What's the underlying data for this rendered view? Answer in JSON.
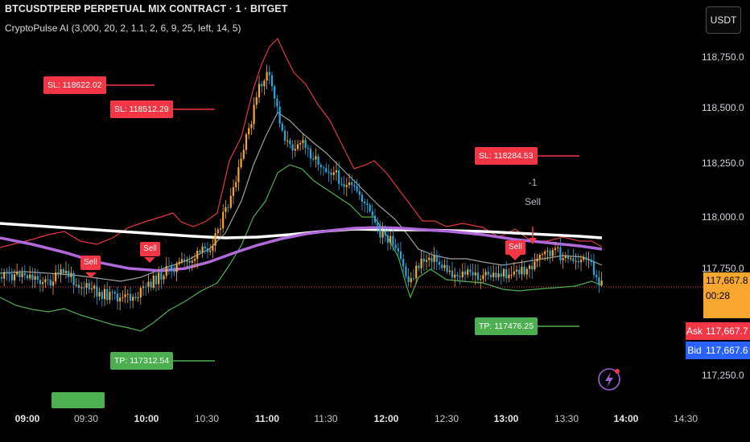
{
  "header": {
    "title": "BTCUSDTPERP PERPETUAL MIX CONTRACT · 1 · BITGET",
    "indicator": "CryptoPulse AI (3,000, 20, 2, 1.1, 2, 6, 9, 25, left, 14, 5)"
  },
  "currency_button": "USDT",
  "price_axis": {
    "labels": [
      "118,750.0",
      "118,500.0",
      "118,250.0",
      "118,000.0",
      "117,750.0",
      "117,250.0"
    ]
  },
  "time_axis": {
    "labels": [
      "09:00",
      "09:30",
      "10:00",
      "10:30",
      "11:00",
      "11:30",
      "12:00",
      "12:30",
      "13:00",
      "13:30",
      "14:00",
      "14:30"
    ]
  },
  "stop_loss_labels": [
    "SL: 118622.02",
    "SL: 118512.29",
    "SL: 118284.53"
  ],
  "take_profit_labels": [
    "TP: 117312.54",
    "TP: 117476.25"
  ],
  "sell_label": "Sell",
  "annotation": {
    "value": "-1",
    "text": "Sell"
  },
  "current_price": {
    "value": "117,667.8",
    "countdown": "00:28"
  },
  "ask": {
    "label": "Ask",
    "value": "117,667.7"
  },
  "bid": {
    "label": "Bid",
    "value": "117,667.6"
  },
  "colors": {
    "bull": "#f7a730",
    "bear": "#26a8df",
    "sl": "#f23645",
    "tp": "#4caf50",
    "upper_band": "#e0383e",
    "lower_band": "#4caf50",
    "mid_band": "#9e9e9e",
    "ema_slow": "#ffffff",
    "ema_fast": "#b069db",
    "ask": "#f23645",
    "bid": "#2962ff"
  },
  "icons": [
    "lightning-icon"
  ],
  "chart_data": {
    "type": "candlestick",
    "x_range": [
      "08:50",
      "14:45"
    ],
    "y_range": [
      117100,
      118900
    ],
    "indicator_lines": [
      "upper band",
      "lower band",
      "mid band",
      "slow EMA",
      "fast EMA"
    ],
    "stop_loss_levels": [
      118622.02,
      118512.29,
      118284.53
    ],
    "take_profit_levels": [
      117312.54,
      117476.25
    ],
    "last_price": 117667.8
  }
}
